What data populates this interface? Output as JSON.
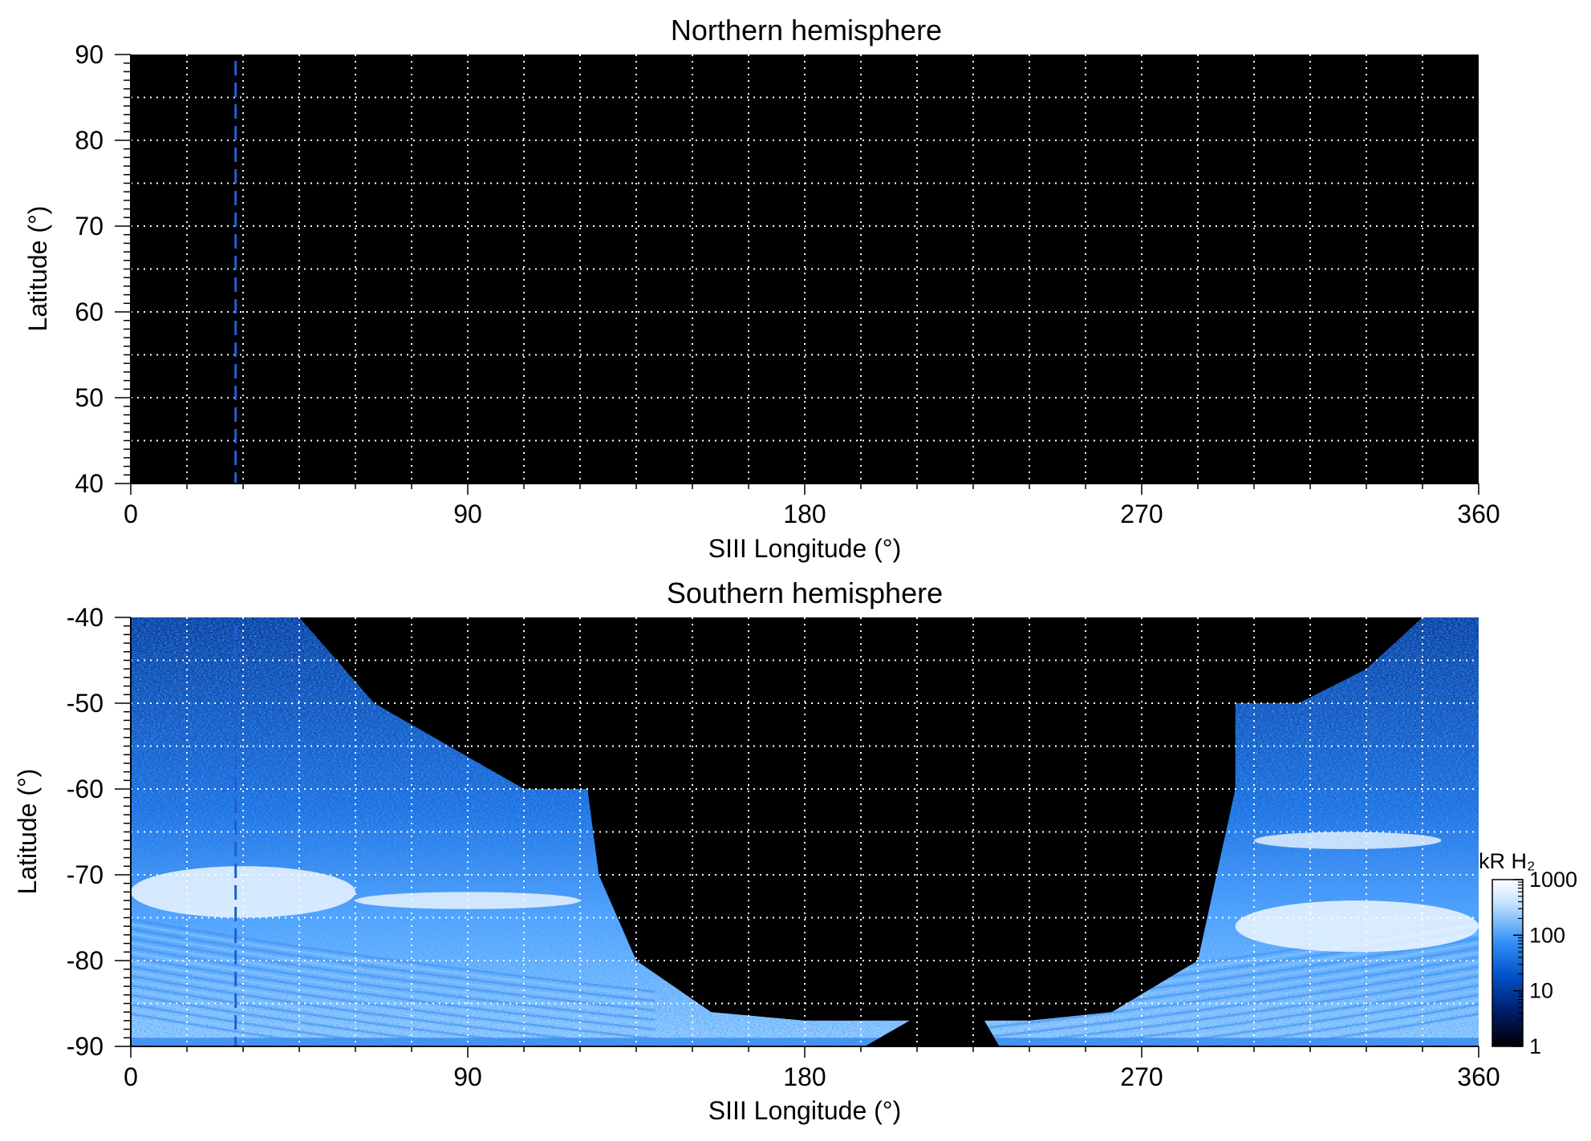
{
  "chart_data": [
    {
      "type": "heatmap",
      "title": "Northern hemisphere",
      "xlabel": "SIII Longitude (°)",
      "ylabel": "Latitude (°)",
      "xlim": [
        0,
        360
      ],
      "ylim": [
        40,
        90
      ],
      "xticks": [
        "0",
        "90",
        "180",
        "270",
        "360"
      ],
      "yticks": [
        "90",
        "80",
        "70",
        "60",
        "50",
        "40"
      ],
      "grid": true,
      "grid_step_lon": 15,
      "grid_step_lat": 5,
      "marker_longitude": 28,
      "colors": {
        "background": "#000000",
        "grid": "#ffffff",
        "marker": "#1f5fd0"
      },
      "emission": []
    },
    {
      "type": "heatmap",
      "title": "Southern hemisphere",
      "xlabel": "SIII Longitude (°)",
      "ylabel": "Latitude (°)",
      "xlim": [
        0,
        360
      ],
      "ylim": [
        -90,
        -40
      ],
      "xticks": [
        "0",
        "90",
        "180",
        "270",
        "360"
      ],
      "yticks": [
        "-40",
        "-50",
        "-60",
        "-70",
        "-80",
        "-90"
      ],
      "grid": true,
      "grid_step_lon": 15,
      "grid_step_lat": 5,
      "marker_longitude": 28,
      "colors": {
        "background": "#000000",
        "grid": "#ffffff",
        "marker": "#1f5fd0"
      },
      "coverage_boundary": {
        "left": [
          [
            0,
            -40
          ],
          [
            45,
            -40
          ],
          [
            65,
            -50
          ],
          [
            85,
            -55
          ],
          [
            105,
            -60
          ],
          [
            122,
            -60
          ],
          [
            125,
            -70
          ],
          [
            135,
            -80
          ],
          [
            155,
            -86
          ],
          [
            180,
            -87
          ],
          [
            208,
            -87
          ],
          [
            196,
            -90
          ]
        ],
        "right": [
          [
            360,
            -40
          ],
          [
            345,
            -40
          ],
          [
            330,
            -46
          ],
          [
            312,
            -50
          ],
          [
            295,
            -50
          ],
          [
            295,
            -60
          ],
          [
            290,
            -70
          ],
          [
            285,
            -80
          ],
          [
            262,
            -86
          ],
          [
            240,
            -87
          ],
          [
            228,
            -87
          ],
          [
            232,
            -90
          ]
        ]
      },
      "auroral_bands": [
        {
          "lon_start": 0,
          "lon_end": 60,
          "lat": -72,
          "width_deg": 6,
          "intensity_kR": 1000
        },
        {
          "lon_start": 60,
          "lon_end": 120,
          "lat": -73,
          "width_deg": 2,
          "intensity_kR": 800
        },
        {
          "lon_start": 295,
          "lon_end": 360,
          "lat": -76,
          "width_deg": 6,
          "intensity_kR": 1000
        },
        {
          "lon_start": 300,
          "lon_end": 350,
          "lat": -66,
          "width_deg": 2,
          "intensity_kR": 600
        }
      ],
      "colorbar": {
        "label": "kR H₂",
        "scale": "log",
        "range": [
          1,
          1000
        ],
        "ticks": [
          "1000",
          "100",
          "10",
          "1"
        ],
        "colors": [
          "#000000",
          "#001a66",
          "#0050c8",
          "#2f8ff5",
          "#bfe0ff",
          "#ffffff"
        ]
      }
    }
  ]
}
